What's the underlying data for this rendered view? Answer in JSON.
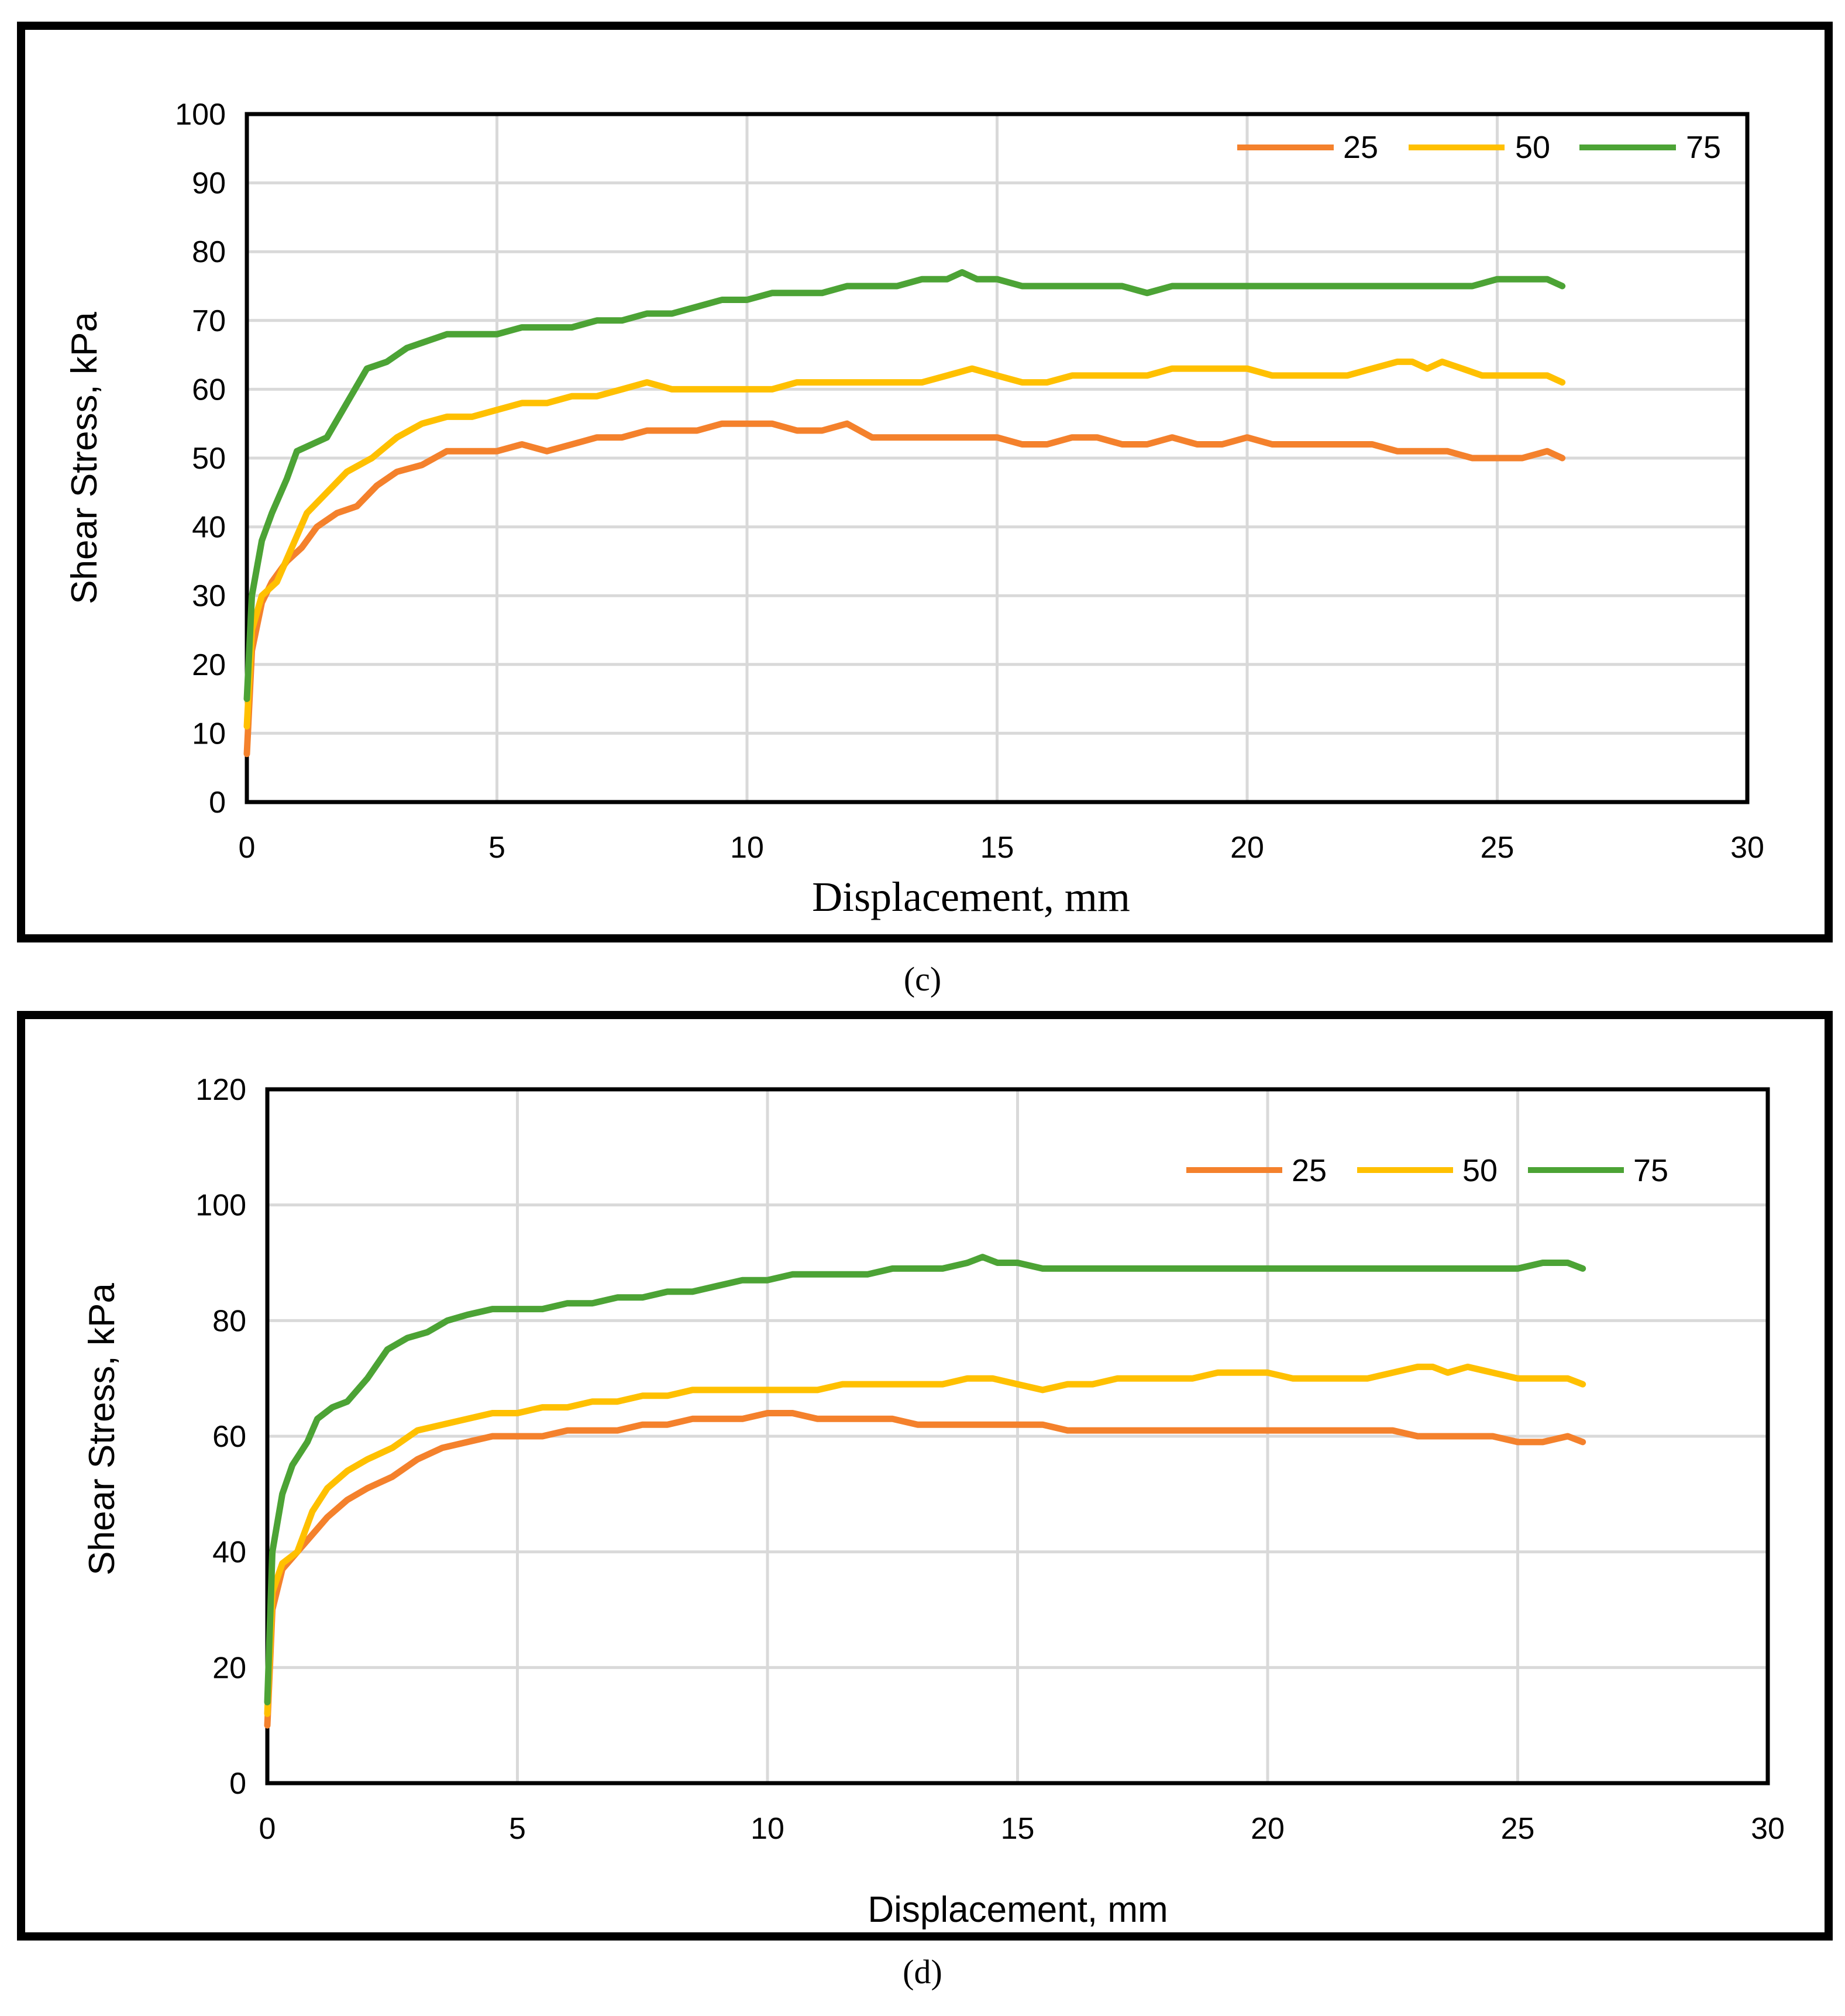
{
  "chart_data": [
    {
      "type": "line",
      "panel_label": "(c)",
      "xlabel": "Displacement, mm",
      "ylabel": "Shear Stress, kPa",
      "xlim": [
        0,
        30
      ],
      "ylim": [
        0,
        100
      ],
      "x_ticks": [
        0,
        5,
        10,
        15,
        20,
        25,
        30
      ],
      "y_ticks": [
        0,
        10,
        20,
        30,
        40,
        50,
        60,
        70,
        80,
        90,
        100
      ],
      "legend": [
        "25",
        "50",
        "75"
      ],
      "legend_position": "top-right",
      "grid": true,
      "series": [
        {
          "name": "25",
          "color": "#F4812C",
          "x": [
            0,
            0.1,
            0.3,
            0.5,
            0.8,
            1.1,
            1.4,
            1.8,
            2.2,
            2.6,
            3.0,
            3.5,
            4.0,
            4.5,
            5.0,
            5.5,
            6.0,
            6.5,
            7.0,
            7.5,
            8.0,
            8.5,
            9.0,
            9.5,
            10.0,
            10.5,
            11.0,
            11.5,
            12.0,
            12.5,
            13.0,
            13.5,
            14.0,
            14.5,
            15.0,
            15.5,
            16.0,
            16.5,
            17.0,
            17.5,
            18.0,
            18.5,
            19.0,
            19.5,
            20.0,
            20.5,
            21.0,
            21.5,
            22.0,
            22.5,
            23.0,
            23.5,
            24.0,
            24.5,
            25.0,
            25.5,
            26.0,
            26.3
          ],
          "y": [
            7,
            22,
            29,
            32,
            35,
            37,
            40,
            42,
            43,
            46,
            48,
            49,
            51,
            51,
            51,
            52,
            51,
            52,
            53,
            53,
            54,
            54,
            54,
            55,
            55,
            55,
            54,
            54,
            55,
            53,
            53,
            53,
            53,
            53,
            53,
            52,
            52,
            53,
            53,
            52,
            52,
            53,
            52,
            52,
            53,
            52,
            52,
            52,
            52,
            52,
            51,
            51,
            51,
            50,
            50,
            50,
            51,
            50
          ]
        },
        {
          "name": "50",
          "color": "#FFC000",
          "x": [
            0,
            0.1,
            0.3,
            0.6,
            0.9,
            1.2,
            1.6,
            2.0,
            2.5,
            3.0,
            3.5,
            4.0,
            4.5,
            5.0,
            5.5,
            6.0,
            6.5,
            7.0,
            7.5,
            8.0,
            8.5,
            9.0,
            9.5,
            10.0,
            10.5,
            11.0,
            11.5,
            12.0,
            12.5,
            13.0,
            13.5,
            14.0,
            14.5,
            15.0,
            15.5,
            16.0,
            16.5,
            17.0,
            17.5,
            18.0,
            18.5,
            19.0,
            19.5,
            20.0,
            20.5,
            21.0,
            21.5,
            22.0,
            22.5,
            23.0,
            23.3,
            23.6,
            23.9,
            24.3,
            24.7,
            25.0,
            25.5,
            26.0,
            26.3
          ],
          "y": [
            11,
            25,
            30,
            32,
            37,
            42,
            45,
            48,
            50,
            53,
            55,
            56,
            56,
            57,
            58,
            58,
            59,
            59,
            60,
            61,
            60,
            60,
            60,
            60,
            60,
            61,
            61,
            61,
            61,
            61,
            61,
            62,
            63,
            62,
            61,
            61,
            62,
            62,
            62,
            62,
            63,
            63,
            63,
            63,
            62,
            62,
            62,
            62,
            63,
            64,
            64,
            63,
            64,
            63,
            62,
            62,
            62,
            62,
            61
          ]
        },
        {
          "name": "75",
          "color": "#4CA335",
          "x": [
            0,
            0.1,
            0.3,
            0.5,
            0.8,
            1.0,
            1.3,
            1.6,
            2.0,
            2.4,
            2.8,
            3.2,
            3.6,
            4.0,
            4.5,
            5.0,
            5.5,
            6.0,
            6.5,
            7.0,
            7.5,
            8.0,
            8.5,
            9.0,
            9.5,
            10.0,
            10.5,
            11.0,
            11.5,
            12.0,
            12.5,
            13.0,
            13.5,
            14.0,
            14.3,
            14.6,
            15.0,
            15.5,
            16.0,
            16.5,
            17.0,
            17.5,
            18.0,
            18.5,
            19.0,
            19.5,
            20.0,
            20.5,
            21.0,
            21.5,
            22.0,
            22.5,
            23.0,
            23.5,
            24.0,
            24.5,
            25.0,
            25.5,
            26.0,
            26.3
          ],
          "y": [
            15,
            30,
            38,
            42,
            47,
            51,
            52,
            53,
            58,
            63,
            64,
            66,
            67,
            68,
            68,
            68,
            69,
            69,
            69,
            70,
            70,
            71,
            71,
            72,
            73,
            73,
            74,
            74,
            74,
            75,
            75,
            75,
            76,
            76,
            77,
            76,
            76,
            75,
            75,
            75,
            75,
            75,
            74,
            75,
            75,
            75,
            75,
            75,
            75,
            75,
            75,
            75,
            75,
            75,
            75,
            75,
            76,
            76,
            76,
            75
          ]
        }
      ]
    },
    {
      "type": "line",
      "panel_label": "(d)",
      "xlabel": "Displacement, mm",
      "ylabel": "Shear Stress, kPa",
      "xlim": [
        0,
        30
      ],
      "ylim": [
        0,
        120
      ],
      "x_ticks": [
        0,
        5,
        10,
        15,
        20,
        25,
        30
      ],
      "y_ticks": [
        0,
        20,
        40,
        60,
        80,
        100,
        120
      ],
      "legend": [
        "25",
        "50",
        "75"
      ],
      "legend_position": "top-right",
      "grid": true,
      "series": [
        {
          "name": "25",
          "color": "#F4812C",
          "x": [
            0,
            0.1,
            0.3,
            0.6,
            0.9,
            1.2,
            1.6,
            2.0,
            2.5,
            3.0,
            3.5,
            4.0,
            4.5,
            5.0,
            5.5,
            6.0,
            6.5,
            7.0,
            7.5,
            8.0,
            8.5,
            9.0,
            9.5,
            10.0,
            10.5,
            11.0,
            11.5,
            12.0,
            12.5,
            13.0,
            13.5,
            14.0,
            14.5,
            15.0,
            15.5,
            16.0,
            16.5,
            17.0,
            17.5,
            18.0,
            18.5,
            19.0,
            19.5,
            20.0,
            20.5,
            21.0,
            21.5,
            22.0,
            22.5,
            23.0,
            23.5,
            24.0,
            24.5,
            25.0,
            25.5,
            26.0,
            26.3
          ],
          "y": [
            10,
            30,
            37,
            40,
            43,
            46,
            49,
            51,
            53,
            56,
            58,
            59,
            60,
            60,
            60,
            61,
            61,
            61,
            62,
            62,
            63,
            63,
            63,
            64,
            64,
            63,
            63,
            63,
            63,
            62,
            62,
            62,
            62,
            62,
            62,
            61,
            61,
            61,
            61,
            61,
            61,
            61,
            61,
            61,
            61,
            61,
            61,
            61,
            61,
            60,
            60,
            60,
            60,
            59,
            59,
            60,
            59
          ]
        },
        {
          "name": "50",
          "color": "#FFC000",
          "x": [
            0,
            0.1,
            0.3,
            0.6,
            0.9,
            1.2,
            1.6,
            2.0,
            2.5,
            3.0,
            3.5,
            4.0,
            4.5,
            5.0,
            5.5,
            6.0,
            6.5,
            7.0,
            7.5,
            8.0,
            8.5,
            9.0,
            9.5,
            10.0,
            10.5,
            11.0,
            11.5,
            12.0,
            12.5,
            13.0,
            13.5,
            14.0,
            14.5,
            15.0,
            15.5,
            16.0,
            16.5,
            17.0,
            17.5,
            18.0,
            18.5,
            19.0,
            19.5,
            20.0,
            20.5,
            21.0,
            21.5,
            22.0,
            22.5,
            23.0,
            23.3,
            23.6,
            24.0,
            24.5,
            25.0,
            25.5,
            26.0,
            26.3
          ],
          "y": [
            12,
            33,
            38,
            40,
            47,
            51,
            54,
            56,
            58,
            61,
            62,
            63,
            64,
            64,
            65,
            65,
            66,
            66,
            67,
            67,
            68,
            68,
            68,
            68,
            68,
            68,
            69,
            69,
            69,
            69,
            69,
            70,
            70,
            69,
            68,
            69,
            69,
            70,
            70,
            70,
            70,
            71,
            71,
            71,
            70,
            70,
            70,
            70,
            71,
            72,
            72,
            71,
            72,
            71,
            70,
            70,
            70,
            69
          ]
        },
        {
          "name": "75",
          "color": "#4CA335",
          "x": [
            0,
            0.1,
            0.3,
            0.5,
            0.8,
            1.0,
            1.3,
            1.6,
            2.0,
            2.4,
            2.8,
            3.2,
            3.6,
            4.0,
            4.5,
            5.0,
            5.5,
            6.0,
            6.5,
            7.0,
            7.5,
            8.0,
            8.5,
            9.0,
            9.5,
            10.0,
            10.5,
            11.0,
            11.5,
            12.0,
            12.5,
            13.0,
            13.5,
            14.0,
            14.3,
            14.6,
            15.0,
            15.5,
            16.0,
            16.5,
            17.0,
            17.5,
            18.0,
            18.5,
            19.0,
            19.5,
            20.0,
            20.5,
            21.0,
            21.5,
            22.0,
            22.5,
            23.0,
            23.5,
            24.0,
            24.5,
            25.0,
            25.5,
            26.0,
            26.3
          ],
          "y": [
            14,
            40,
            50,
            55,
            59,
            63,
            65,
            66,
            70,
            75,
            77,
            78,
            80,
            81,
            82,
            82,
            82,
            83,
            83,
            84,
            84,
            85,
            85,
            86,
            87,
            87,
            88,
            88,
            88,
            88,
            89,
            89,
            89,
            90,
            91,
            90,
            90,
            89,
            89,
            89,
            89,
            89,
            89,
            89,
            89,
            89,
            89,
            89,
            89,
            89,
            89,
            89,
            89,
            89,
            89,
            89,
            89,
            90,
            90,
            89
          ]
        }
      ]
    }
  ]
}
